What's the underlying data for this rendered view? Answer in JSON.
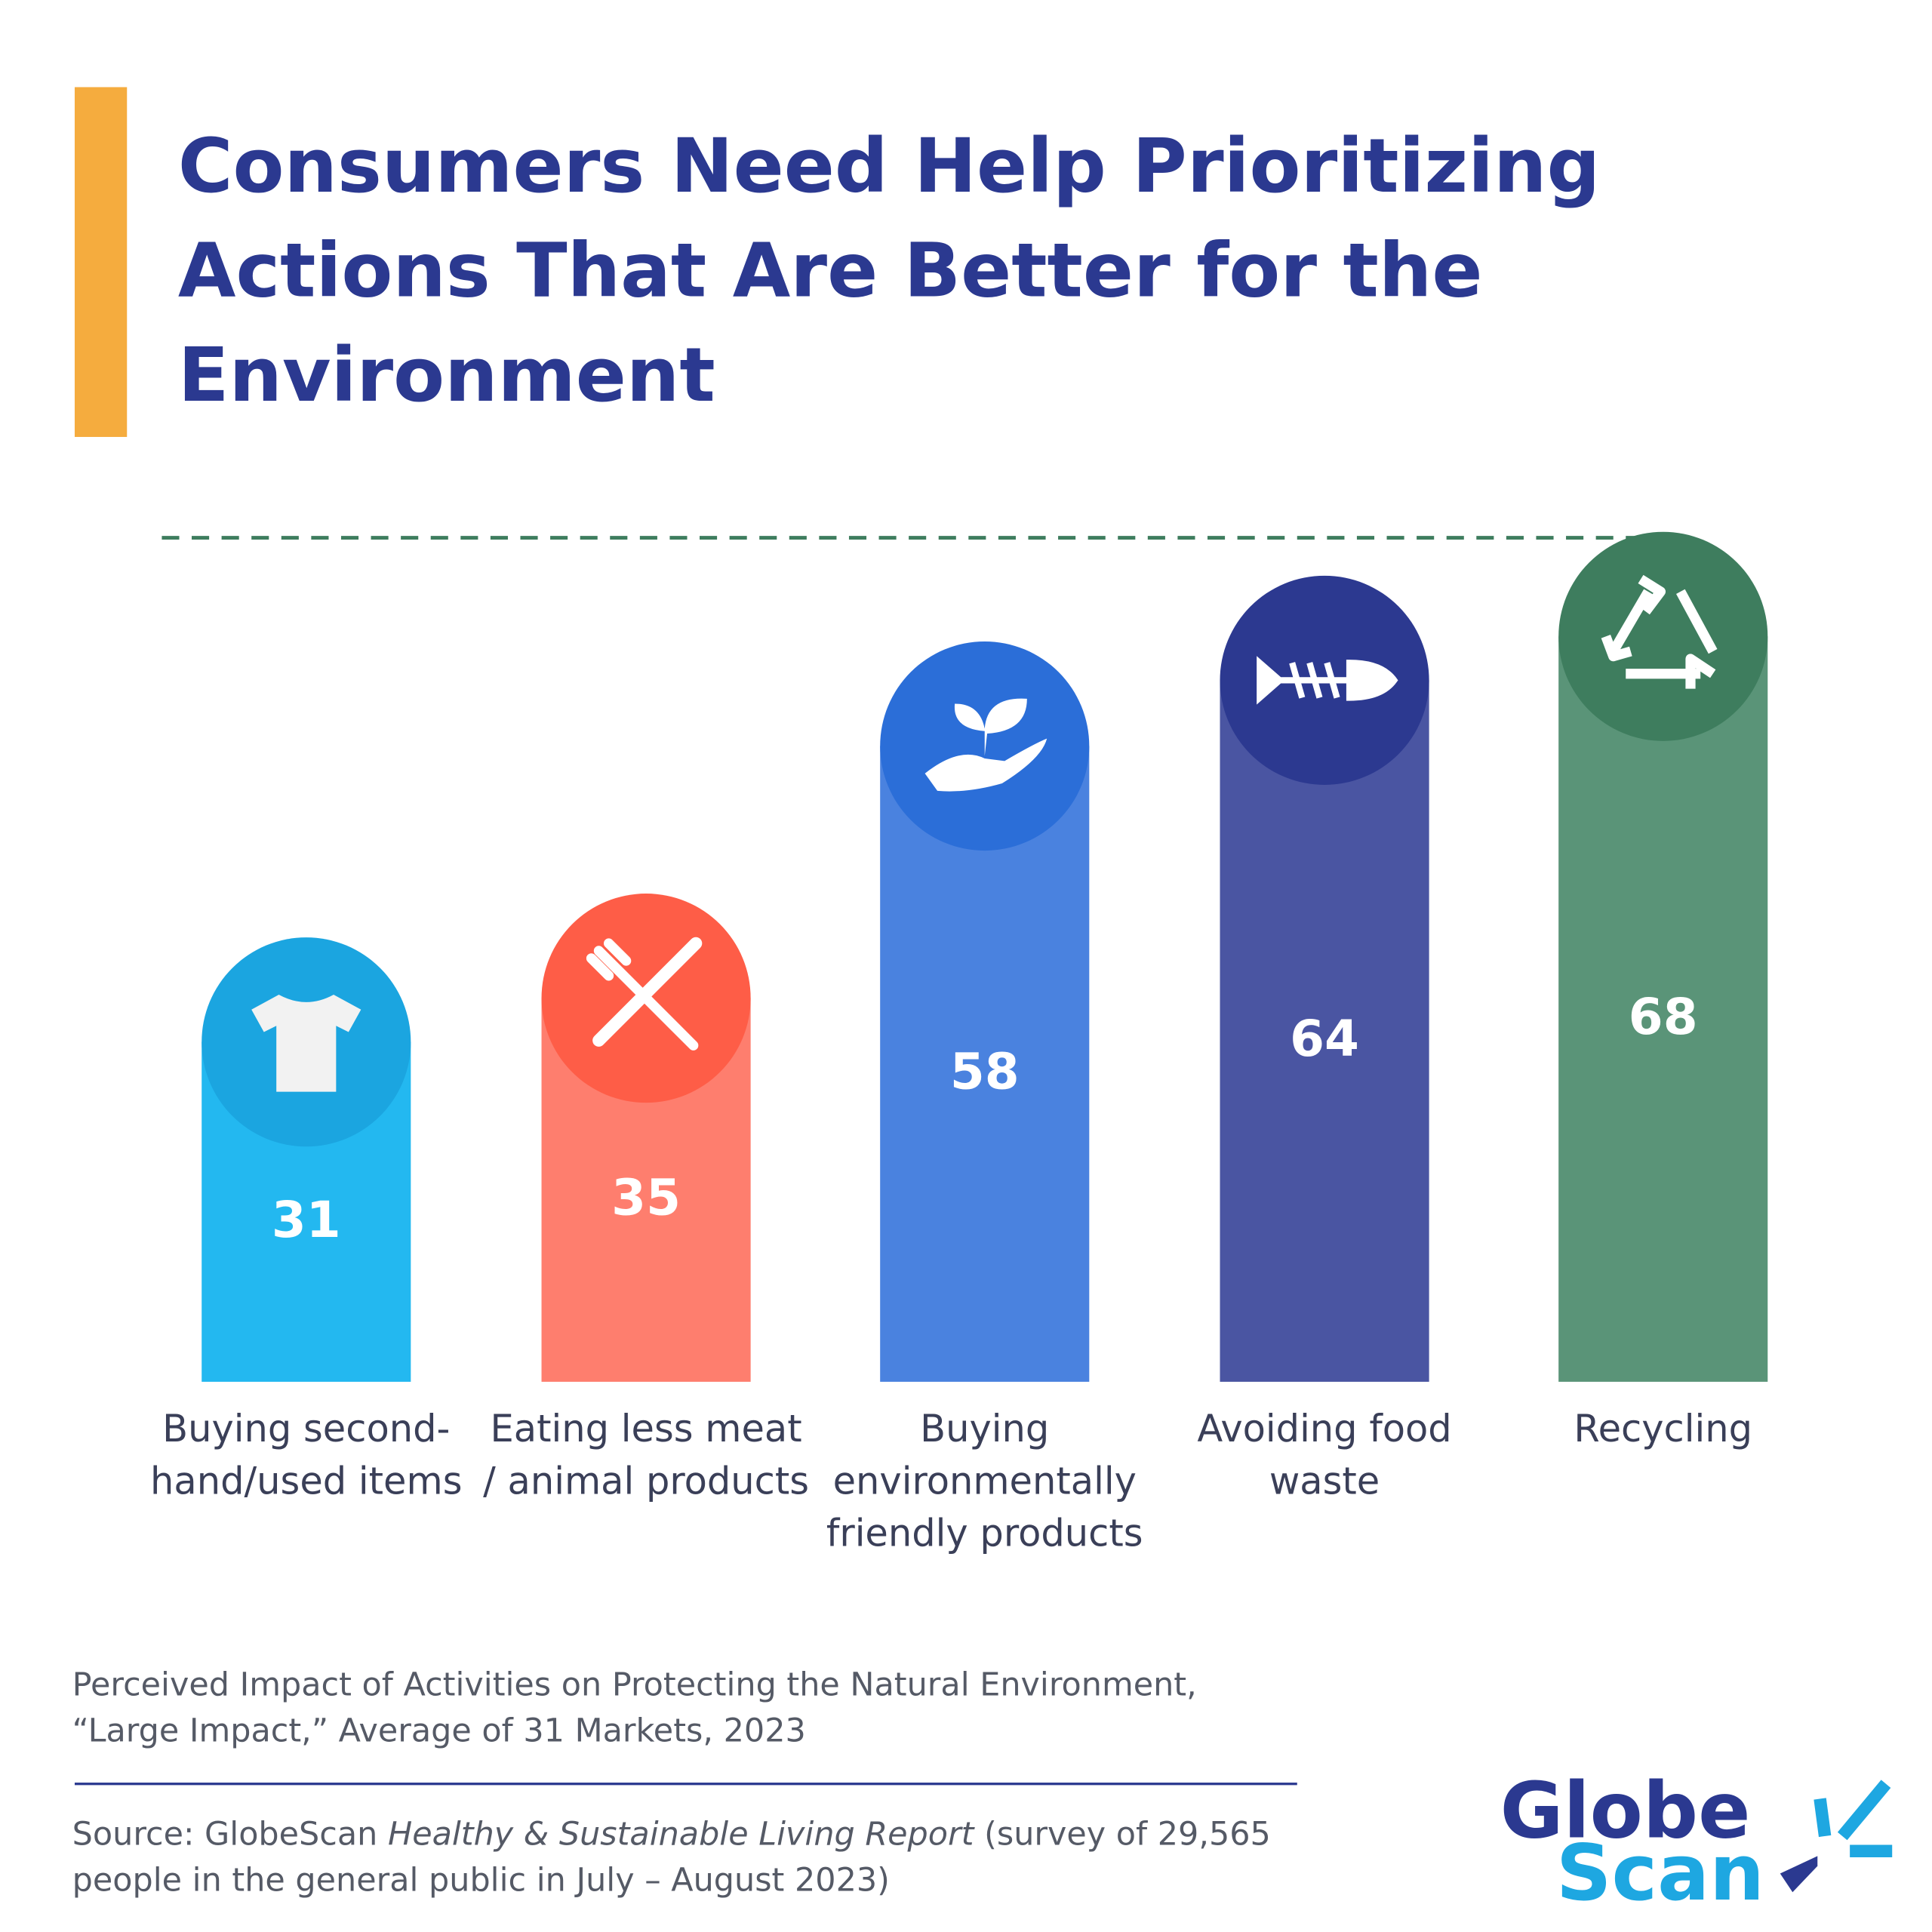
{
  "title": "Consumers Need Help Prioritizing Actions That Are Better for the Environment",
  "chart_data": {
    "type": "bar",
    "categories": [
      "Buying second-hand/used items",
      "Eating less meat / animal products",
      "Buying environmentally friendly products",
      "Avoiding food waste",
      "Recycling"
    ],
    "values": [
      31,
      35,
      58,
      64,
      68
    ],
    "colors": [
      "#23b8f0",
      "#fe7e6e",
      "#4a82df",
      "#4a55a2",
      "#5a9478"
    ],
    "icon_colors": [
      "#1ba5e0",
      "#fe5d47",
      "#2b6ed8",
      "#2c3990",
      "#3e7d5e"
    ],
    "ylim": [
      0,
      77
    ]
  },
  "subtitle": "Perceived Impact of Activities on Protecting the Natural Environment, “Large Impact,” Average of 31 Markets, 2023",
  "source": {
    "before": "Source: GlobeScan ",
    "italic": "Healthy & Sustainable Living Report",
    "after": " (survey of 29,565 people in the general public in July – August 2023)"
  },
  "logo": {
    "line1": "Globe",
    "line2": "Scan"
  }
}
